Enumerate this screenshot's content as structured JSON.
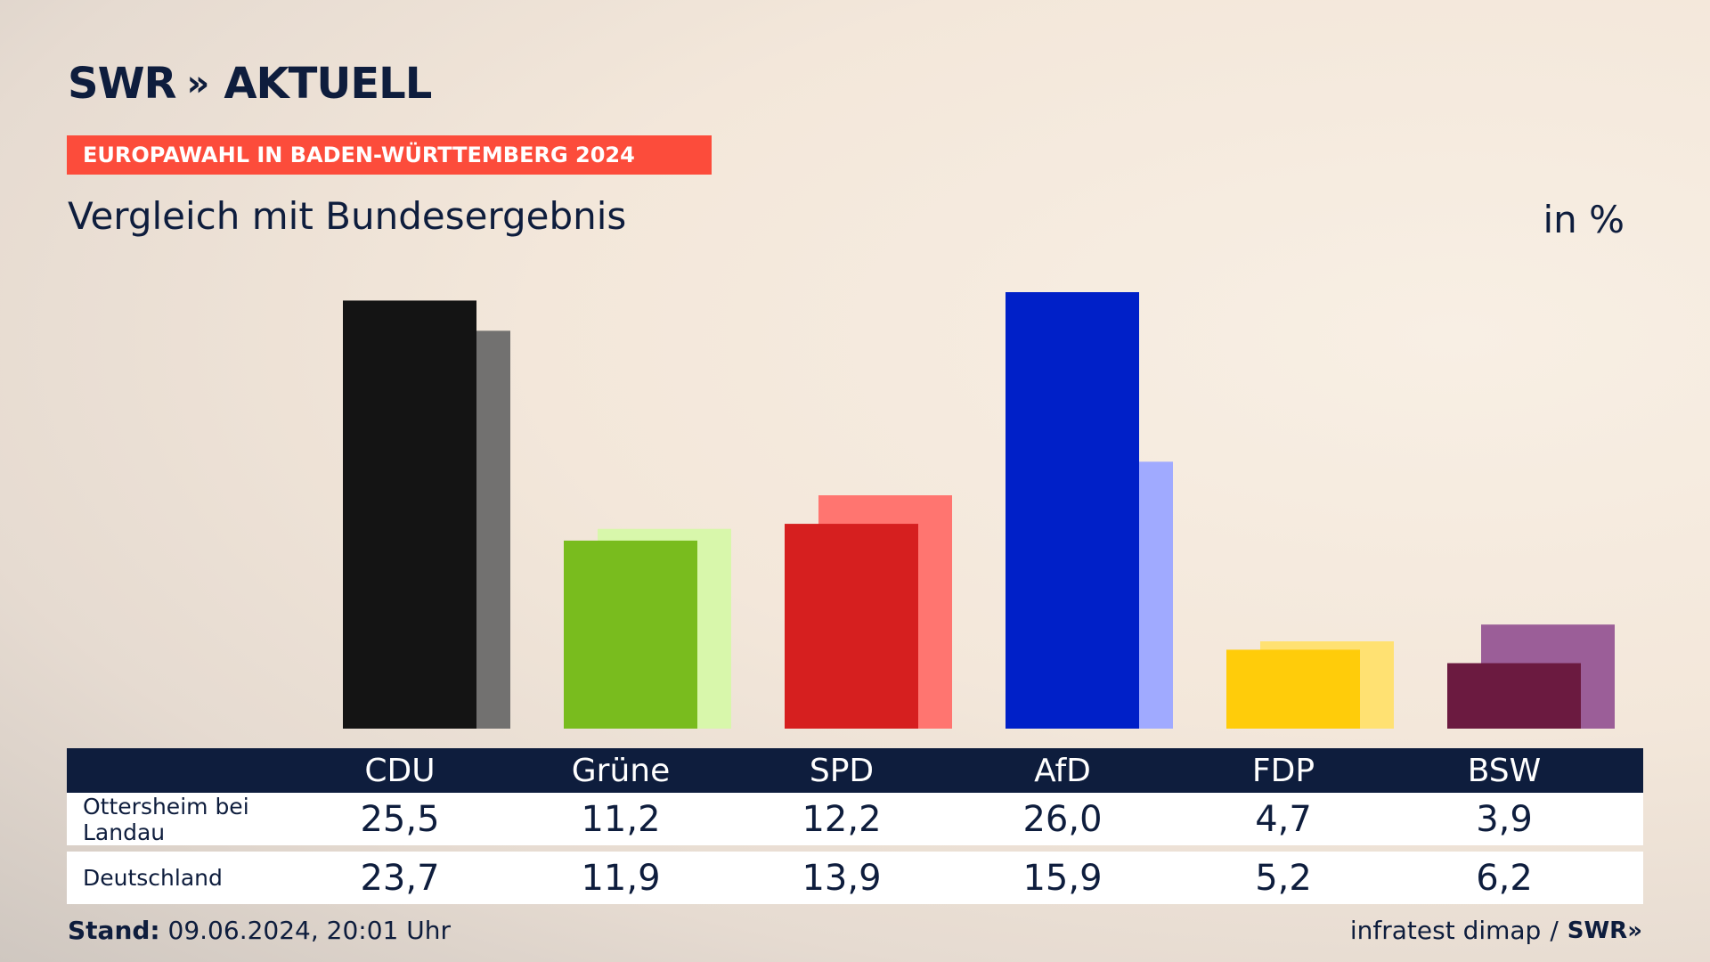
{
  "brand": {
    "name": "SWR",
    "chevrons": "»",
    "program": "AKTUELL"
  },
  "banner": "EUROPAWAHL IN BADEN-WÜRTTEMBERG 2024",
  "subtitle": "Vergleich mit Bundesergebnis",
  "unit": "in %",
  "footer": {
    "stand_label": "Stand:",
    "stand_value": "09.06.2024, 20:01 Uhr",
    "source": "infratest dimap",
    "separator": "/",
    "logo": "SWR»"
  },
  "chart_data": {
    "type": "bar",
    "categories": [
      "CDU",
      "Grüne",
      "SPD",
      "AfD",
      "FDP",
      "BSW"
    ],
    "series": [
      {
        "name": "Ottersheim bei Landau",
        "values": [
          25.5,
          11.2,
          12.2,
          26.0,
          4.7,
          3.9
        ],
        "display": [
          "25,5",
          "11,2",
          "12,2",
          "26,0",
          "4,7",
          "3,9"
        ],
        "colors": [
          "#141414",
          "#79bc1e",
          "#d61f1f",
          "#0020c8",
          "#ffcc0a",
          "#6b1a40"
        ]
      },
      {
        "name": "Deutschland",
        "values": [
          23.7,
          11.9,
          13.9,
          15.9,
          5.2,
          6.2
        ],
        "display": [
          "23,7",
          "11,9",
          "13,9",
          "15,9",
          "5,2",
          "6,2"
        ],
        "colors": [
          "#727170",
          "#d8f7ab",
          "#ff7570",
          "#a0aaff",
          "#ffe172",
          "#9b5e98"
        ]
      }
    ],
    "ylim": [
      0,
      26
    ]
  }
}
